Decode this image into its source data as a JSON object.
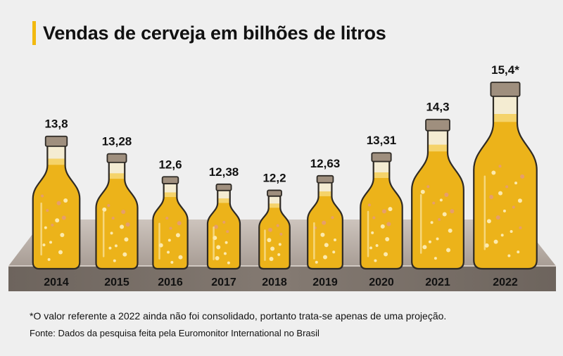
{
  "title": "Vendas de cerveja em bilhões de litros",
  "note": "*O valor referente a 2022 ainda não foi consolidado, portanto trata-se apenas de uma projeção.",
  "source": "Fonte: Dados da pesquisa feita pela Euromonitor International no Brasil",
  "colors": {
    "accent": "#f2b90f",
    "beer": "#ecb31a",
    "beer_top": "#f5d36a",
    "outline": "#2e2a25",
    "cap": "#9f8f7e",
    "table_front": "#766d66",
    "table_top": "#bfb5ae"
  },
  "chart_data": {
    "type": "bar",
    "title": "Vendas de cerveja em bilhões de litros",
    "xlabel": "",
    "ylabel": "bilhões de litros",
    "categories": [
      "2014",
      "2015",
      "2016",
      "2017",
      "2018",
      "2019",
      "2020",
      "2021",
      "2022"
    ],
    "values": [
      13.8,
      13.28,
      12.6,
      12.38,
      12.2,
      12.63,
      13.31,
      14.3,
      15.4
    ],
    "value_labels": [
      "13,8",
      "13,28",
      "12,6",
      "12,38",
      "12,2",
      "12,63",
      "13,31",
      "14,3",
      "15,4*"
    ],
    "ylim": [
      11.5,
      15.4
    ]
  }
}
